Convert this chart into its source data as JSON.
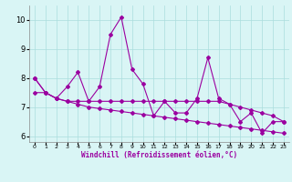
{
  "x": [
    0,
    1,
    2,
    3,
    4,
    5,
    6,
    7,
    8,
    9,
    10,
    11,
    12,
    13,
    14,
    15,
    16,
    17,
    18,
    19,
    20,
    21,
    22,
    23
  ],
  "line1": [
    8.0,
    7.5,
    7.3,
    7.7,
    8.2,
    7.2,
    7.7,
    9.5,
    10.1,
    8.3,
    7.8,
    6.7,
    7.2,
    6.8,
    6.8,
    7.3,
    8.7,
    7.3,
    7.1,
    6.5,
    6.8,
    6.1,
    6.5,
    6.5
  ],
  "line2": [
    7.5,
    7.5,
    7.3,
    7.2,
    7.2,
    7.2,
    7.2,
    7.2,
    7.2,
    7.2,
    7.2,
    7.2,
    7.2,
    7.2,
    7.2,
    7.2,
    7.2,
    7.2,
    7.1,
    7.0,
    6.9,
    6.8,
    6.7,
    6.5
  ],
  "line3": [
    8.0,
    7.5,
    7.3,
    7.2,
    7.1,
    7.0,
    6.95,
    6.9,
    6.85,
    6.8,
    6.75,
    6.7,
    6.65,
    6.6,
    6.55,
    6.5,
    6.45,
    6.4,
    6.35,
    6.3,
    6.25,
    6.2,
    6.15,
    6.1
  ],
  "line_color": "#9B00A0",
  "bg_color": "#d9f5f5",
  "grid_color": "#aadddd",
  "xlabel": "Windchill (Refroidissement éolien,°C)",
  "ylim": [
    5.8,
    10.5
  ],
  "xlim": [
    -0.5,
    23.5
  ],
  "yticks": [
    6,
    7,
    8,
    9,
    10
  ],
  "xticks": [
    0,
    1,
    2,
    3,
    4,
    5,
    6,
    7,
    8,
    9,
    10,
    11,
    12,
    13,
    14,
    15,
    16,
    17,
    18,
    19,
    20,
    21,
    22,
    23
  ]
}
